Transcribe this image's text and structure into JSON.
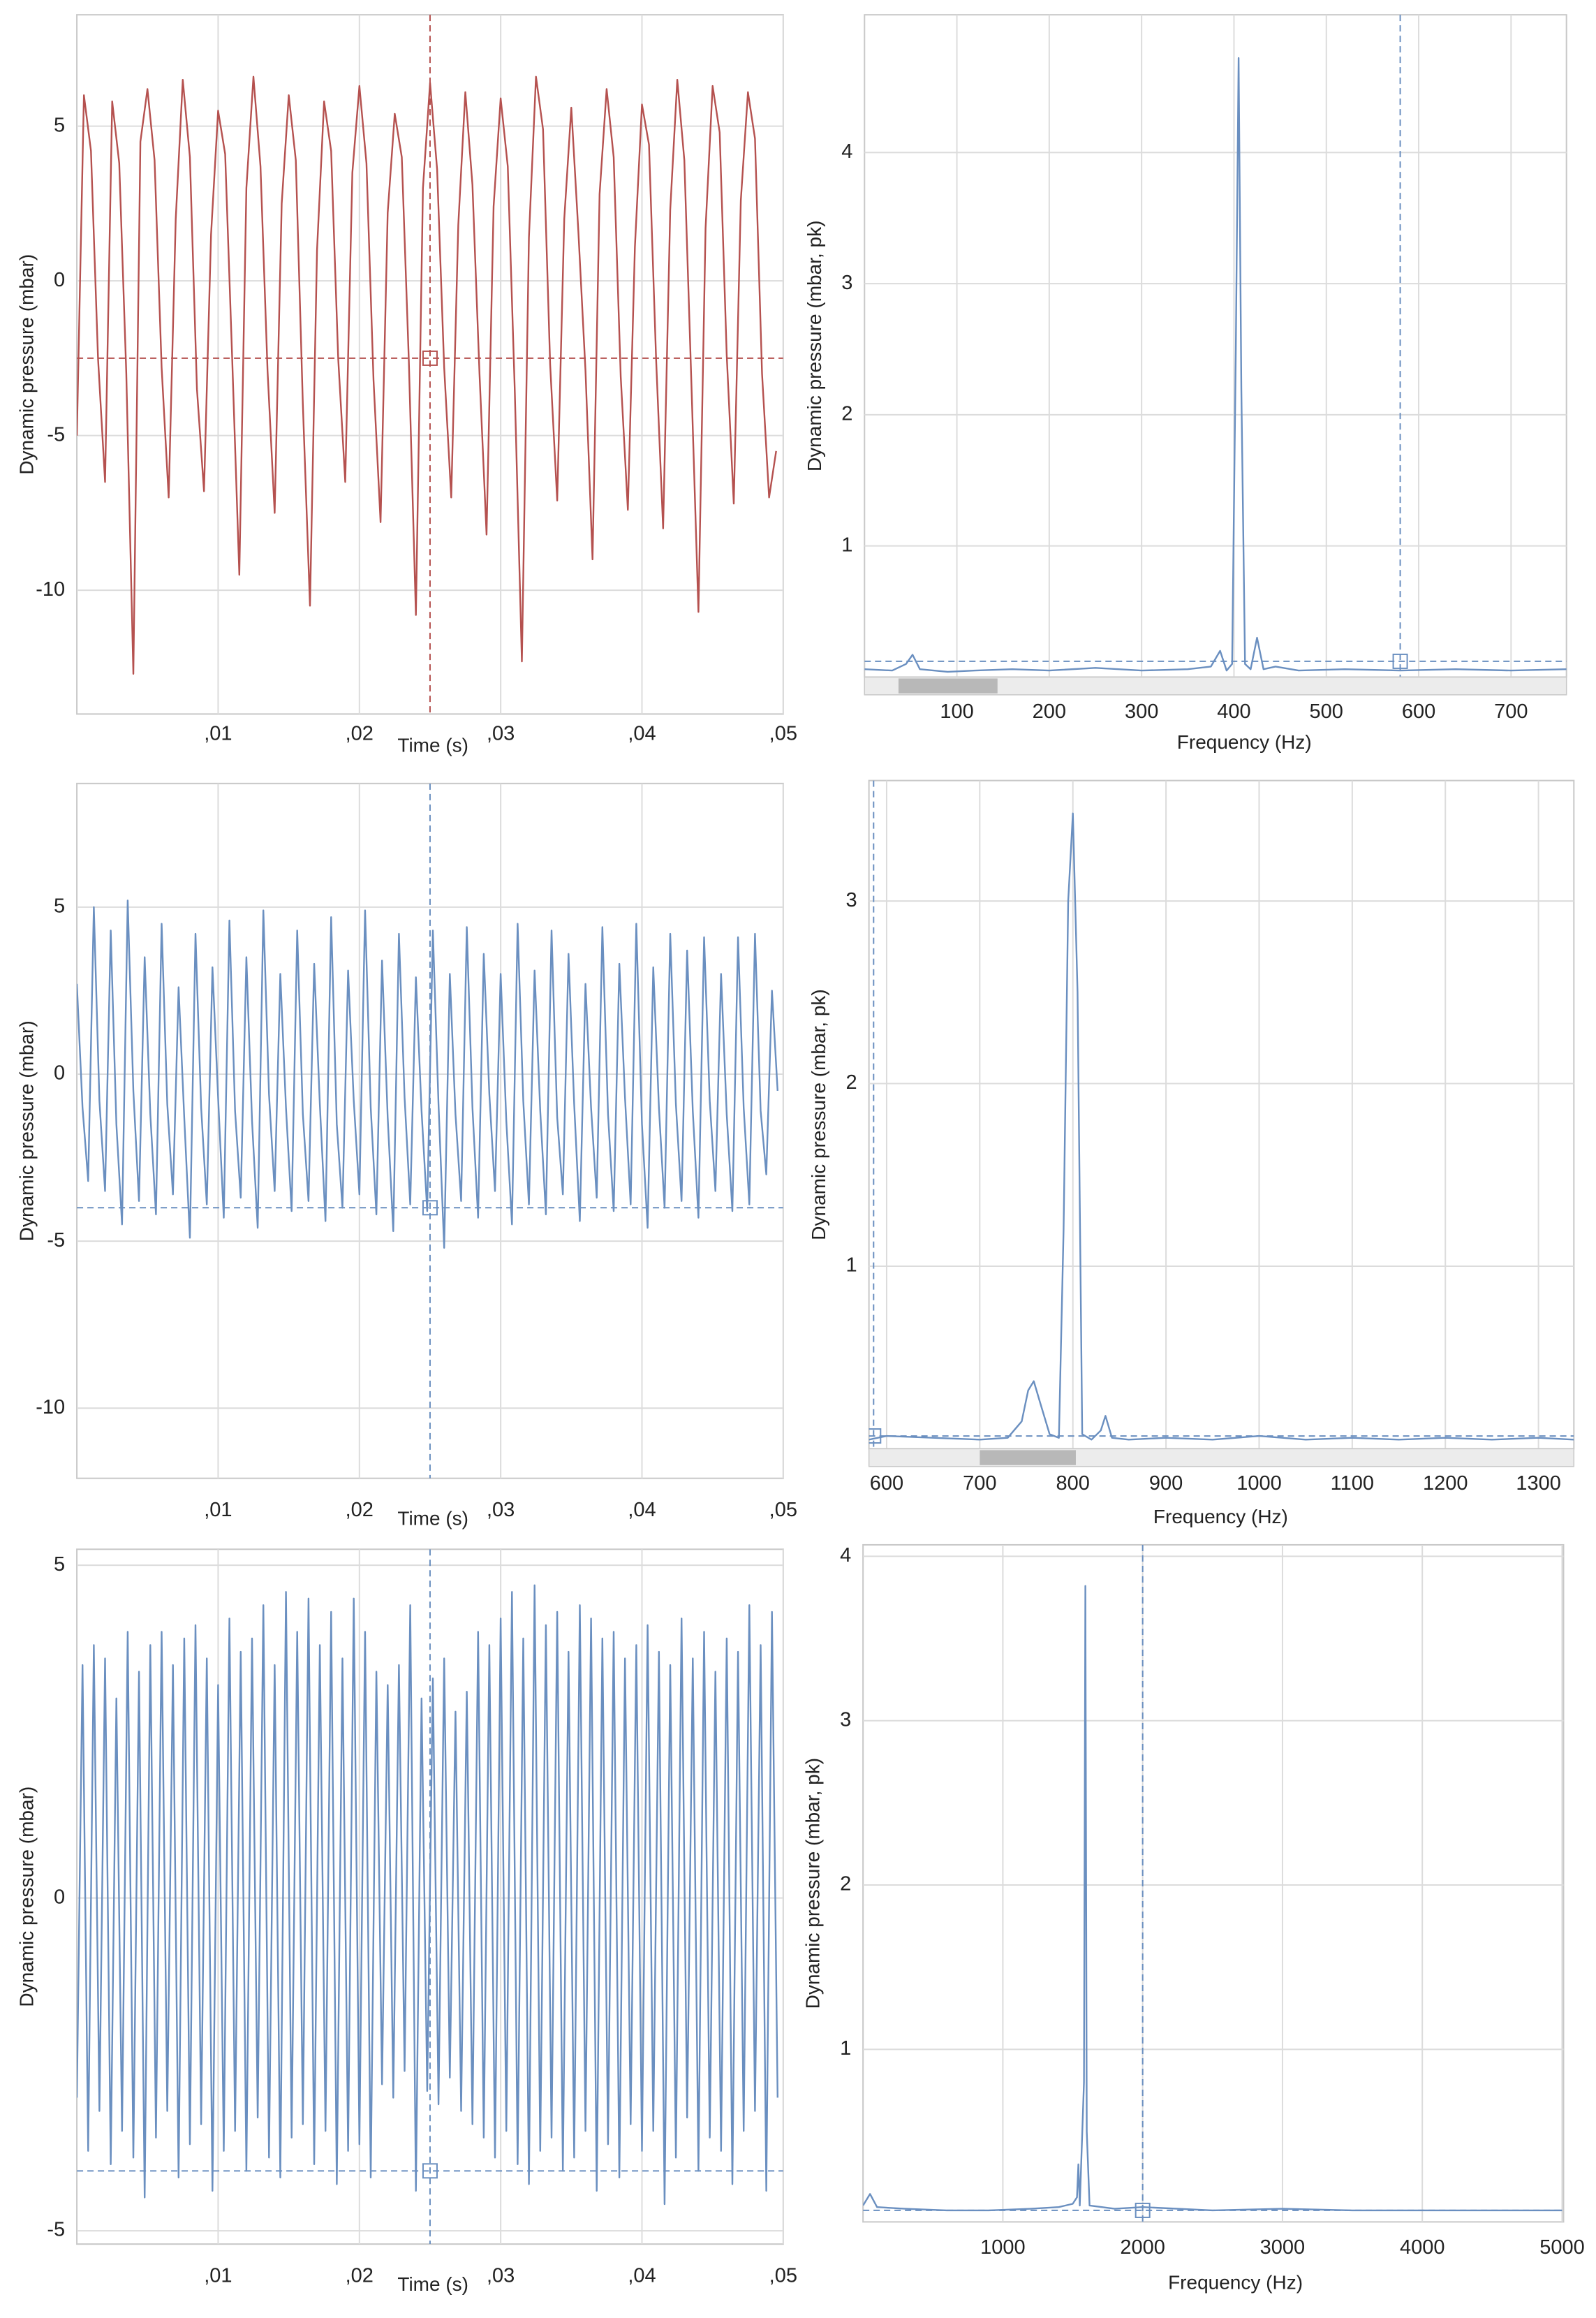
{
  "chart_data": [
    {
      "type": "line",
      "x_label": "Time (s)",
      "y_label": "Dynamic pressure (mbar)",
      "color": "#b5514f",
      "grid": true,
      "xlim": [
        0,
        0.05
      ],
      "ylim": [
        -14,
        8.6
      ],
      "xticks": [
        {
          "value": 0.01,
          "label": ",01"
        },
        {
          "value": 0.02,
          "label": ",02"
        },
        {
          "value": 0.03,
          "label": ",03"
        },
        {
          "value": 0.04,
          "label": ",04"
        },
        {
          "value": 0.05,
          "label": ",05"
        }
      ],
      "yticks": [
        5,
        0,
        -5,
        -10
      ],
      "cursor": {
        "x": 0.025,
        "y": -2.5
      },
      "x": [
        0,
        0.0005,
        0.001,
        0.0015,
        0.002,
        0.0025,
        0.003,
        0.0035,
        0.004,
        0.0045,
        0.005,
        0.0055,
        0.006,
        0.0065,
        0.007,
        0.0075,
        0.008,
        0.0085,
        0.009,
        0.0095,
        0.01,
        0.0105,
        0.011,
        0.0115,
        0.012,
        0.0125,
        0.013,
        0.0135,
        0.014,
        0.0145,
        0.015,
        0.0155,
        0.016,
        0.0165,
        0.017,
        0.0175,
        0.018,
        0.0185,
        0.019,
        0.0195,
        0.02,
        0.0205,
        0.021,
        0.0215,
        0.022,
        0.0225,
        0.023,
        0.0235,
        0.024,
        0.0245,
        0.025,
        0.0255,
        0.026,
        0.0265,
        0.027,
        0.0275,
        0.028,
        0.0285,
        0.029,
        0.0295,
        0.03,
        0.0305,
        0.031,
        0.0315,
        0.032,
        0.0325,
        0.033,
        0.0335,
        0.034,
        0.0345,
        0.035,
        0.0355,
        0.036,
        0.0365,
        0.037,
        0.0375,
        0.038,
        0.0385,
        0.039,
        0.0395,
        0.04,
        0.0405,
        0.041,
        0.0415,
        0.042,
        0.0425,
        0.043,
        0.0435,
        0.044,
        0.0445,
        0.045,
        0.0455,
        0.046,
        0.0465,
        0.047,
        0.0475,
        0.048,
        0.0485,
        0.049,
        0.0495
      ],
      "values": [
        -5,
        6,
        4.2,
        -2.5,
        -6.5,
        5.8,
        3.8,
        -3,
        -12.7,
        4.5,
        6.2,
        3.9,
        -2.8,
        -7,
        2,
        6.5,
        4,
        -3.5,
        -6.8,
        1.5,
        5.5,
        4.1,
        -2.6,
        -9.5,
        3,
        6.6,
        3.7,
        -2.9,
        -7.5,
        2.5,
        6,
        3.9,
        -4,
        -10.5,
        1,
        5.8,
        4.2,
        -2.5,
        -6.5,
        3.5,
        6.3,
        3.8,
        -3.2,
        -7.8,
        2.2,
        5.4,
        4,
        -2.6,
        -10.8,
        3,
        6.4,
        3.6,
        -2.8,
        -7,
        1.8,
        6.1,
        3.1,
        -3,
        -8.2,
        2.4,
        5.9,
        3.7,
        -3.6,
        -12.3,
        1.4,
        6.6,
        4.9,
        -2.7,
        -7.1,
        2,
        5.6,
        1.6,
        -2.9,
        -9,
        2.8,
        6.2,
        4,
        -3.1,
        -7.4,
        1.1,
        5.7,
        4.4,
        -2.5,
        -8,
        2.3,
        6.5,
        3.9,
        -3.3,
        -10.7,
        1.7,
        6.3,
        4.8,
        -2.4,
        -7.2,
        2.6,
        6.1,
        4.6,
        -3,
        -7,
        -5.5
      ]
    },
    {
      "type": "line",
      "x_label": "Frequency (Hz)",
      "y_label": "Dynamic pressure (mbar, pk)",
      "color": "#6a8fc0",
      "grid": true,
      "xlim": [
        0,
        760
      ],
      "ylim": [
        0,
        5.05
      ],
      "xticks": [
        100,
        200,
        300,
        400,
        500,
        600,
        700
      ],
      "yticks": [
        1,
        2,
        3,
        4
      ],
      "cursor": {
        "x": 580,
        "y": 0.12
      },
      "x": [
        0,
        30,
        45,
        52,
        60,
        90,
        120,
        160,
        200,
        250,
        300,
        350,
        375,
        385,
        392,
        398,
        402,
        405,
        408,
        412,
        418,
        425,
        432,
        445,
        470,
        520,
        580,
        640,
        700,
        760
      ],
      "values": [
        0.06,
        0.05,
        0.1,
        0.17,
        0.06,
        0.04,
        0.05,
        0.06,
        0.05,
        0.07,
        0.05,
        0.06,
        0.08,
        0.2,
        0.05,
        0.1,
        2.5,
        4.72,
        2.2,
        0.1,
        0.06,
        0.3,
        0.06,
        0.08,
        0.05,
        0.06,
        0.05,
        0.06,
        0.05,
        0.06
      ]
    },
    {
      "type": "line",
      "x_label": "Time (s)",
      "y_label": "Dynamic pressure (mbar)",
      "color": "#6a8fc0",
      "grid": true,
      "xlim": [
        0,
        0.05
      ],
      "ylim": [
        -12.1,
        8.7
      ],
      "xticks": [
        {
          "value": 0.01,
          "label": ",01"
        },
        {
          "value": 0.02,
          "label": ",02"
        },
        {
          "value": 0.03,
          "label": ",03"
        },
        {
          "value": 0.04,
          "label": ",04"
        },
        {
          "value": 0.05,
          "label": ",05"
        }
      ],
      "yticks": [
        5,
        0,
        -5,
        -10
      ],
      "cursor": {
        "x": 0.025,
        "y": -4
      },
      "x": [
        0,
        0.0004,
        0.0008,
        0.0012,
        0.0016,
        0.002,
        0.0024,
        0.0028,
        0.0032,
        0.0036,
        0.004,
        0.0044,
        0.0048,
        0.0052,
        0.0056,
        0.006,
        0.0064,
        0.0068,
        0.0072,
        0.0076,
        0.008,
        0.0084,
        0.0088,
        0.0092,
        0.0096,
        0.01,
        0.0104,
        0.0108,
        0.0112,
        0.0116,
        0.012,
        0.0124,
        0.0128,
        0.0132,
        0.0136,
        0.014,
        0.0144,
        0.0148,
        0.0152,
        0.0156,
        0.016,
        0.0164,
        0.0168,
        0.0172,
        0.0176,
        0.018,
        0.0184,
        0.0188,
        0.0192,
        0.0196,
        0.02,
        0.0204,
        0.0208,
        0.0212,
        0.0216,
        0.022,
        0.0224,
        0.0228,
        0.0232,
        0.0236,
        0.024,
        0.0244,
        0.0248,
        0.0252,
        0.0256,
        0.026,
        0.0264,
        0.0268,
        0.0272,
        0.0276,
        0.028,
        0.0284,
        0.0288,
        0.0292,
        0.0296,
        0.03,
        0.0304,
        0.0308,
        0.0312,
        0.0316,
        0.032,
        0.0324,
        0.0328,
        0.0332,
        0.0336,
        0.034,
        0.0344,
        0.0348,
        0.0352,
        0.0356,
        0.036,
        0.0364,
        0.0368,
        0.0372,
        0.0376,
        0.038,
        0.0384,
        0.0388,
        0.0392,
        0.0396,
        0.04,
        0.0404,
        0.0408,
        0.0412,
        0.0416,
        0.042,
        0.0424,
        0.0428,
        0.0432,
        0.0436,
        0.044,
        0.0444,
        0.0448,
        0.0452,
        0.0456,
        0.046,
        0.0464,
        0.0468,
        0.0472,
        0.0476,
        0.048,
        0.0484,
        0.0488,
        0.0492,
        0.0496
      ],
      "values": [
        2.7,
        -1,
        -3.2,
        5,
        -0.8,
        -3.5,
        4.3,
        -1.5,
        -4.5,
        5.2,
        -0.5,
        -3.8,
        3.5,
        -1.2,
        -4.2,
        4.5,
        -0.9,
        -3.6,
        2.6,
        -1.3,
        -4.9,
        4.2,
        -1,
        -3.9,
        3.2,
        -0.7,
        -4.3,
        4.6,
        -1.1,
        -3.7,
        3.5,
        -1.4,
        -4.6,
        4.9,
        -0.6,
        -3.5,
        3,
        -1,
        -4.1,
        4.3,
        -1.2,
        -3.8,
        3.3,
        -0.9,
        -4.4,
        4.7,
        -1.5,
        -4,
        3.1,
        -0.8,
        -3.6,
        4.9,
        -1,
        -4.2,
        3.4,
        -1.3,
        -4.7,
        4.2,
        -0.7,
        -3.9,
        2.9,
        -1.1,
        -4.1,
        4.3,
        -0.9,
        -5.2,
        3,
        -1.2,
        -3.8,
        4.4,
        -1,
        -4.3,
        3.6,
        -0.6,
        -3.5,
        3,
        -1.4,
        -4.5,
        4.5,
        -0.8,
        -3.9,
        3.1,
        -1.1,
        -4.2,
        4.3,
        -1.3,
        -3.6,
        3.6,
        -0.9,
        -4.4,
        2.7,
        -1,
        -3.7,
        4.4,
        -1.2,
        -4.1,
        3.3,
        -0.7,
        -3.9,
        4.5,
        -1.5,
        -4.6,
        3.2,
        -1,
        -4,
        4.2,
        -0.9,
        -3.8,
        3.7,
        -1.1,
        -4.3,
        4.1,
        -0.8,
        -3.5,
        3,
        -1.2,
        -4.1,
        4.1,
        -1,
        -3.9,
        4.2,
        -1.1,
        -3,
        2.5,
        -0.5
      ]
    },
    {
      "type": "line",
      "x_label": "Frequency (Hz)",
      "y_label": "Dynamic pressure (mbar, pk)",
      "color": "#6a8fc0",
      "grid": true,
      "xlim": [
        581,
        1338
      ],
      "ylim": [
        0,
        3.66
      ],
      "xticks": [
        600,
        700,
        800,
        900,
        1000,
        1100,
        1200,
        1300
      ],
      "yticks": [
        1,
        2,
        3
      ],
      "cursor": {
        "x": 586,
        "y": 0.07
      },
      "x": [
        581,
        600,
        650,
        700,
        730,
        745,
        752,
        758,
        765,
        775,
        785,
        790,
        795,
        800,
        805,
        810,
        820,
        830,
        835,
        842,
        860,
        900,
        950,
        1000,
        1050,
        1100,
        1150,
        1200,
        1250,
        1300,
        1338
      ],
      "values": [
        0.05,
        0.07,
        0.06,
        0.05,
        0.06,
        0.15,
        0.32,
        0.37,
        0.25,
        0.08,
        0.06,
        1.2,
        3,
        3.48,
        2.5,
        0.08,
        0.05,
        0.1,
        0.18,
        0.06,
        0.05,
        0.06,
        0.05,
        0.07,
        0.05,
        0.06,
        0.05,
        0.06,
        0.05,
        0.06,
        0.05
      ]
    },
    {
      "type": "line",
      "x_label": "Time (s)",
      "y_label": "Dynamic pressure (mbar)",
      "color": "#6a8fc0",
      "grid": true,
      "xlim": [
        0,
        0.05
      ],
      "ylim": [
        -5.2,
        5.24
      ],
      "xticks": [
        {
          "value": 0.01,
          "label": ",01"
        },
        {
          "value": 0.02,
          "label": ",02"
        },
        {
          "value": 0.03,
          "label": ",03"
        },
        {
          "value": 0.04,
          "label": ",04"
        },
        {
          "value": 0.05,
          "label": ",05"
        }
      ],
      "yticks": [
        5,
        0,
        -5
      ],
      "cursor": {
        "x": 0.025,
        "y": -4.1
      },
      "x": [
        0,
        0.0004,
        0.0008,
        0.0012,
        0.0016,
        0.002,
        0.0024,
        0.0028,
        0.0032,
        0.0036,
        0.004,
        0.0044,
        0.0048,
        0.0052,
        0.0056,
        0.006,
        0.0064,
        0.0068,
        0.0072,
        0.0076,
        0.008,
        0.0084,
        0.0088,
        0.0092,
        0.0096,
        0.01,
        0.0104,
        0.0108,
        0.0112,
        0.0116,
        0.012,
        0.0124,
        0.0128,
        0.0132,
        0.0136,
        0.014,
        0.0144,
        0.0148,
        0.0152,
        0.0156,
        0.016,
        0.0164,
        0.0168,
        0.0172,
        0.0176,
        0.018,
        0.0184,
        0.0188,
        0.0192,
        0.0196,
        0.02,
        0.0204,
        0.0208,
        0.0212,
        0.0216,
        0.022,
        0.0224,
        0.0228,
        0.0232,
        0.0236,
        0.024,
        0.0244,
        0.0248,
        0.0252,
        0.0256,
        0.026,
        0.0264,
        0.0268,
        0.0272,
        0.0276,
        0.028,
        0.0284,
        0.0288,
        0.0292,
        0.0296,
        0.03,
        0.0304,
        0.0308,
        0.0312,
        0.0316,
        0.032,
        0.0324,
        0.0328,
        0.0332,
        0.0336,
        0.034,
        0.0344,
        0.0348,
        0.0352,
        0.0356,
        0.036,
        0.0364,
        0.0368,
        0.0372,
        0.0376,
        0.038,
        0.0384,
        0.0388,
        0.0392,
        0.0396,
        0.04,
        0.0404,
        0.0408,
        0.0412,
        0.0416,
        0.042,
        0.0424,
        0.0428,
        0.0432,
        0.0436,
        0.044,
        0.0444,
        0.0448,
        0.0452,
        0.0456,
        0.046,
        0.0464,
        0.0468,
        0.0472,
        0.0476,
        0.048,
        0.0484,
        0.0488,
        0.0492,
        0.0496
      ],
      "values": [
        -3,
        3.5,
        -3.8,
        3.8,
        -3.2,
        3.6,
        -4,
        3,
        -3.5,
        4,
        -3.9,
        3.4,
        -4.5,
        3.8,
        -3.6,
        4,
        -3.2,
        3.5,
        -4.2,
        3.9,
        -3.7,
        4.1,
        -3.4,
        3.6,
        -4.4,
        3.2,
        -3.8,
        4.2,
        -3.5,
        3.7,
        -4.1,
        3.9,
        -3.3,
        4.4,
        -3.9,
        3.5,
        -4.2,
        4.6,
        -3.6,
        4,
        -3.4,
        4.5,
        -4,
        3.8,
        -3.5,
        4.3,
        -4.3,
        3.6,
        -3.8,
        4.5,
        -3.7,
        4,
        -4.2,
        3.4,
        -2.8,
        3.2,
        -3,
        3.5,
        -2.6,
        4.4,
        -4.4,
        3,
        -2.9,
        3.3,
        -3.1,
        3.6,
        -2.7,
        2.8,
        -3.2,
        3.1,
        -3.4,
        4,
        -3.6,
        3.8,
        -3.9,
        4.2,
        -3.5,
        4.6,
        -4,
        3.9,
        -4.3,
        4.7,
        -3.8,
        4.1,
        -3.6,
        4.3,
        -4.1,
        3.7,
        -3.9,
        4.4,
        -3.5,
        4.2,
        -4.4,
        3.9,
        -3.7,
        4,
        -4.2,
        3.6,
        -3.4,
        3.8,
        -3.8,
        4.1,
        -3.5,
        3.7,
        -4.6,
        3.5,
        -3.9,
        4.2,
        -3.3,
        3.6,
        -4.1,
        4,
        -3.6,
        3.4,
        -3.8,
        3.9,
        -4.3,
        3.7,
        -3.5,
        4.4,
        -3.2,
        3.8,
        -4.4,
        4.3,
        -3
      ]
    },
    {
      "type": "line",
      "x_label": "Frequency (Hz)",
      "y_label": "Dynamic pressure (mbar, pk)",
      "color": "#6a8fc0",
      "grid": true,
      "xlim": [
        0,
        5010
      ],
      "ylim": [
        -0.05,
        4.07
      ],
      "xticks": [
        1000,
        2000,
        3000,
        4000,
        5000
      ],
      "yticks": [
        1,
        2,
        3,
        4
      ],
      "cursor": {
        "x": 2000,
        "y": 0.02
      },
      "x": [
        0,
        50,
        100,
        300,
        600,
        900,
        1200,
        1400,
        1500,
        1530,
        1540,
        1550,
        1580,
        1590,
        1600,
        1620,
        1800,
        2000,
        2500,
        3000,
        3500,
        4000,
        4500,
        5000
      ],
      "values": [
        0.05,
        0.12,
        0.04,
        0.03,
        0.02,
        0.02,
        0.03,
        0.04,
        0.06,
        0.1,
        0.3,
        0.05,
        0.8,
        3.82,
        0.5,
        0.05,
        0.03,
        0.04,
        0.02,
        0.03,
        0.02,
        0.02,
        0.02,
        0.02
      ]
    }
  ]
}
